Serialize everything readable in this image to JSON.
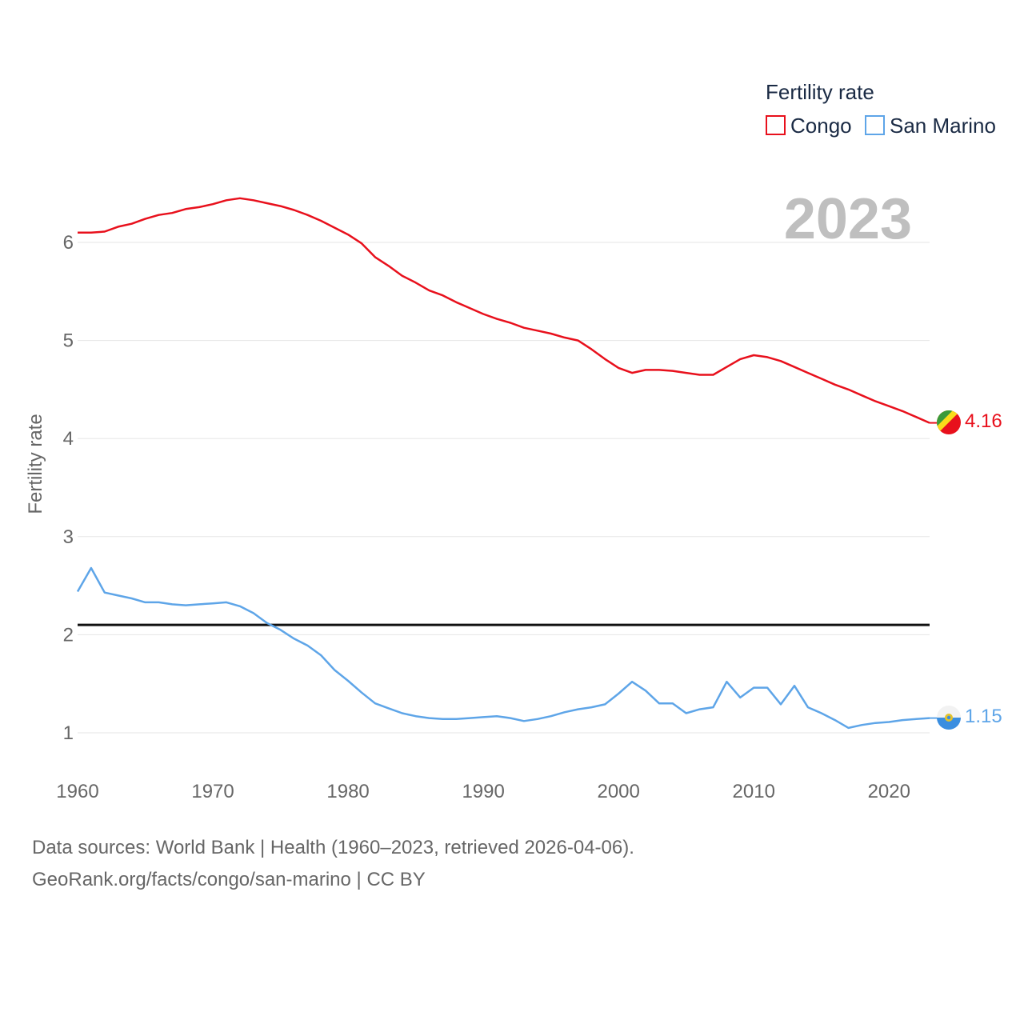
{
  "chart_data": {
    "type": "line",
    "title": "Fertility rate",
    "ylabel": "Fertility rate",
    "xlabel": "",
    "year_display": "2023",
    "xlim": [
      1960,
      2023
    ],
    "ylim": [
      0.5,
      6.9
    ],
    "x_ticks": [
      1960,
      1970,
      1980,
      1990,
      2000,
      2010,
      2020
    ],
    "y_ticks": [
      1,
      2,
      3,
      4,
      5,
      6
    ],
    "reference_line": 2.1,
    "x": [
      1960,
      1961,
      1962,
      1963,
      1964,
      1965,
      1966,
      1967,
      1968,
      1969,
      1970,
      1971,
      1972,
      1973,
      1974,
      1975,
      1976,
      1977,
      1978,
      1979,
      1980,
      1981,
      1982,
      1983,
      1984,
      1985,
      1986,
      1987,
      1988,
      1989,
      1990,
      1991,
      1992,
      1993,
      1994,
      1995,
      1996,
      1997,
      1998,
      1999,
      2000,
      2001,
      2002,
      2003,
      2004,
      2005,
      2006,
      2007,
      2008,
      2009,
      2010,
      2011,
      2012,
      2013,
      2014,
      2015,
      2016,
      2017,
      2018,
      2019,
      2020,
      2021,
      2022,
      2023
    ],
    "series": [
      {
        "name": "Congo",
        "color": "#e8101c",
        "end_label": "4.16",
        "values": [
          6.1,
          6.1,
          6.11,
          6.16,
          6.19,
          6.24,
          6.28,
          6.3,
          6.34,
          6.36,
          6.39,
          6.43,
          6.45,
          6.43,
          6.4,
          6.37,
          6.33,
          6.28,
          6.22,
          6.15,
          6.08,
          5.99,
          5.85,
          5.76,
          5.66,
          5.59,
          5.51,
          5.46,
          5.39,
          5.33,
          5.27,
          5.22,
          5.18,
          5.13,
          5.1,
          5.07,
          5.03,
          5.0,
          4.91,
          4.81,
          4.72,
          4.67,
          4.7,
          4.7,
          4.69,
          4.67,
          4.65,
          4.65,
          4.73,
          4.81,
          4.85,
          4.83,
          4.79,
          4.73,
          4.67,
          4.61,
          4.55,
          4.5,
          4.44,
          4.38,
          4.33,
          4.28,
          4.22,
          4.16
        ]
      },
      {
        "name": "San Marino",
        "color": "#5ea5e8",
        "end_label": "1.15",
        "values": [
          2.44,
          2.68,
          2.43,
          2.4,
          2.37,
          2.33,
          2.33,
          2.31,
          2.3,
          2.31,
          2.32,
          2.33,
          2.29,
          2.22,
          2.12,
          2.05,
          1.96,
          1.89,
          1.79,
          1.64,
          1.53,
          1.41,
          1.3,
          1.25,
          1.2,
          1.17,
          1.15,
          1.14,
          1.14,
          1.15,
          1.16,
          1.17,
          1.15,
          1.12,
          1.14,
          1.17,
          1.21,
          1.24,
          1.26,
          1.29,
          1.4,
          1.52,
          1.43,
          1.3,
          1.3,
          1.2,
          1.24,
          1.26,
          1.52,
          1.36,
          1.46,
          1.46,
          1.29,
          1.48,
          1.26,
          1.2,
          1.13,
          1.05,
          1.08,
          1.1,
          1.11,
          1.13,
          1.14,
          1.15
        ]
      }
    ]
  },
  "legend": {
    "title": "Fertility rate",
    "items": [
      "Congo",
      "San Marino"
    ]
  },
  "footer": {
    "line1": "Data sources: World Bank | Health (1960–2023, retrieved 2026-04-06).",
    "line2": "GeoRank.org/facts/congo/san-marino | CC BY"
  },
  "icons": {
    "congo_flag": "congo-flag-icon",
    "san_marino_flag": "san-marino-flag-icon"
  }
}
